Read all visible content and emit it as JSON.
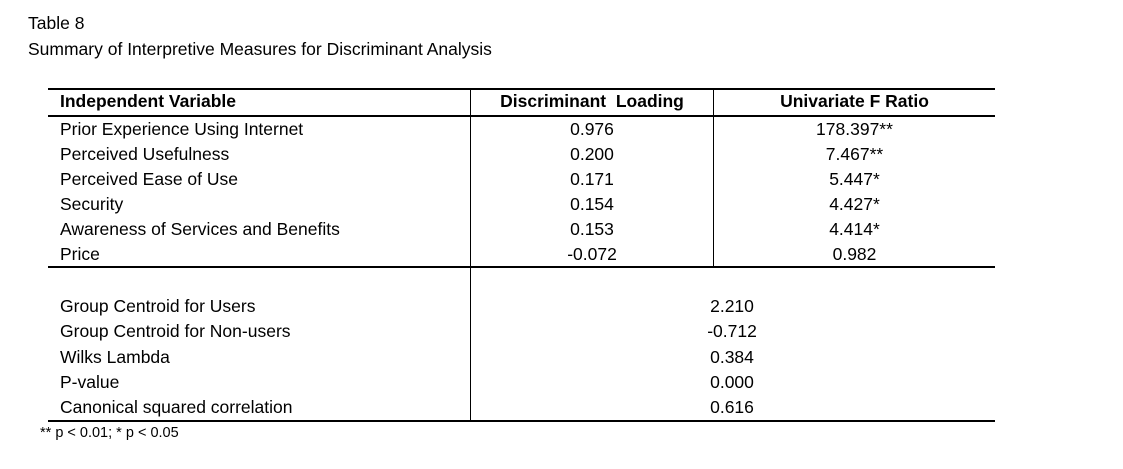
{
  "caption": {
    "label": "Table 8",
    "title": "Summary of Interpretive Measures for Discriminant Analysis"
  },
  "table": {
    "headers": [
      "Independent Variable",
      "Discriminant  Loading",
      "Univariate F Ratio"
    ],
    "rows": [
      [
        "Prior Experience Using Internet",
        "0.976",
        "178.397**"
      ],
      [
        "Perceived Usefulness",
        "0.200",
        "7.467**"
      ],
      [
        "Perceived Ease of Use",
        "0.171",
        "5.447*"
      ],
      [
        "Security",
        "0.154",
        "4.427*"
      ],
      [
        "Awareness of Services and Benefits",
        "0.153",
        "4.414*"
      ],
      [
        "Price",
        "-0.072",
        "0.982"
      ]
    ],
    "summary": [
      [
        "Group Centroid for Users",
        "2.210"
      ],
      [
        "Group Centroid for Non-users",
        "-0.712"
      ],
      [
        "Wilks Lambda",
        "0.384"
      ],
      [
        "P-value",
        "0.000"
      ],
      [
        "Canonical squared correlation",
        "0.616"
      ]
    ]
  },
  "footnote": "** p < 0.01; * p < 0.05"
}
